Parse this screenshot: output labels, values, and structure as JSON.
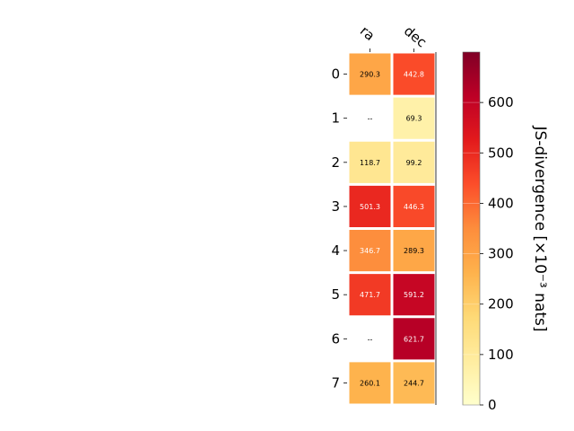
{
  "chart_data": {
    "type": "heatmap",
    "columns": [
      "ra",
      "dec"
    ],
    "rows": [
      "0",
      "1",
      "2",
      "3",
      "4",
      "5",
      "6",
      "7"
    ],
    "values": [
      [
        290.3,
        442.8
      ],
      [
        null,
        69.3
      ],
      [
        118.7,
        99.2
      ],
      [
        501.3,
        446.3
      ],
      [
        346.7,
        289.3
      ],
      [
        471.7,
        591.2
      ],
      [
        null,
        621.7
      ],
      [
        260.1,
        244.7
      ]
    ],
    "value_labels": [
      [
        "290.3",
        "442.8"
      ],
      [
        "--",
        "69.3"
      ],
      [
        "118.7",
        "99.2"
      ],
      [
        "501.3",
        "446.3"
      ],
      [
        "346.7",
        "289.3"
      ],
      [
        "471.7",
        "591.2"
      ],
      [
        "--",
        "621.7"
      ],
      [
        "260.1",
        "244.7"
      ]
    ],
    "colorbar": {
      "label": "JS-divergence [×10⁻³ nats]",
      "range": [
        0,
        700
      ],
      "ticks": [
        0,
        100,
        200,
        300,
        400,
        500,
        600
      ],
      "tick_labels": [
        "0",
        "100",
        "200",
        "300",
        "400",
        "500",
        "600"
      ],
      "colormap": "YlOrRd"
    },
    "colors": {
      "colormap_stops": [
        "#ffffcc",
        "#ffeda0",
        "#fed976",
        "#feb24c",
        "#fd8d3c",
        "#fc4e2a",
        "#e31a1c",
        "#bd0026",
        "#800026"
      ],
      "cell_border": "#ffffff",
      "text_dark": "#000000",
      "text_light": "#ffffff"
    }
  }
}
